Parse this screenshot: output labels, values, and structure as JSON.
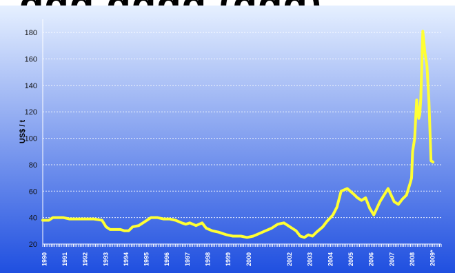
{
  "title_fragment": "ggg gggg (ggg)",
  "chart_data": {
    "type": "line",
    "ylabel": "US$ / t",
    "xlabel": "",
    "ylim": [
      20,
      190
    ],
    "y_ticks": [
      20,
      40,
      60,
      80,
      100,
      120,
      140,
      160,
      180
    ],
    "x_tick_labels": [
      "1990",
      "1991",
      "1992",
      "1993",
      "1994",
      "1995",
      "1996",
      "1997",
      "1998",
      "1999",
      "2000",
      "2002",
      "2003",
      "2004",
      "2005",
      "2006",
      "2007",
      "2008",
      "2009*"
    ],
    "grid": true,
    "line_color": "#ffff33",
    "background_top": "#e6f0ff",
    "background_bottom": "#1f4fe0",
    "series": [
      {
        "x": [
          1990.0,
          1990.3,
          1990.5,
          1991.0,
          1991.3,
          1991.5,
          1992.0,
          1992.5,
          1992.9,
          1993.1,
          1993.3,
          1993.5,
          1993.8,
          1994.0,
          1994.2,
          1994.4,
          1994.7,
          1995.0,
          1995.3,
          1995.6,
          1995.9,
          1996.2,
          1996.5,
          1996.8,
          1997.0,
          1997.2,
          1997.5,
          1997.8,
          1998.0,
          1998.3,
          1998.6,
          1998.8,
          1999.0,
          1999.3,
          1999.7,
          2000.0,
          2000.3,
          2000.6,
          2000.9,
          2001.2,
          2001.5,
          2001.8,
          2002.0,
          2002.2,
          2002.4,
          2002.6,
          2002.8,
          2003.0,
          2003.2,
          2003.4,
          2003.7,
          2003.9,
          2004.2,
          2004.4,
          2004.6,
          2004.9,
          2005.2,
          2005.4,
          2005.6,
          2005.8,
          2006.0,
          2006.2,
          2006.5,
          2006.7,
          2006.9,
          2007.2,
          2007.4,
          2007.6,
          2007.8,
          2008.0,
          2008.05,
          2008.1,
          2008.2,
          2008.3,
          2008.4,
          2008.45,
          2008.5,
          2008.6,
          2008.7,
          2008.8,
          2008.9,
          2009.0,
          2009.1
        ],
        "values": [
          38,
          38,
          40,
          40,
          39,
          39,
          39,
          39,
          38,
          33,
          31,
          31,
          31,
          30,
          30,
          33,
          34,
          37,
          40,
          40,
          39,
          39,
          38,
          36,
          35,
          36,
          34,
          36,
          32,
          30,
          29,
          28,
          27,
          26,
          26,
          25,
          26,
          28,
          30,
          32,
          35,
          36,
          34,
          32,
          30,
          26,
          25,
          27,
          26,
          29,
          33,
          37,
          42,
          48,
          60,
          62,
          58,
          55,
          53,
          55,
          47,
          42,
          52,
          57,
          62,
          52,
          50,
          54,
          57,
          67,
          70,
          90,
          100,
          129,
          115,
          118,
          130,
          181,
          165,
          155,
          128,
          83,
          82
        ]
      }
    ]
  }
}
